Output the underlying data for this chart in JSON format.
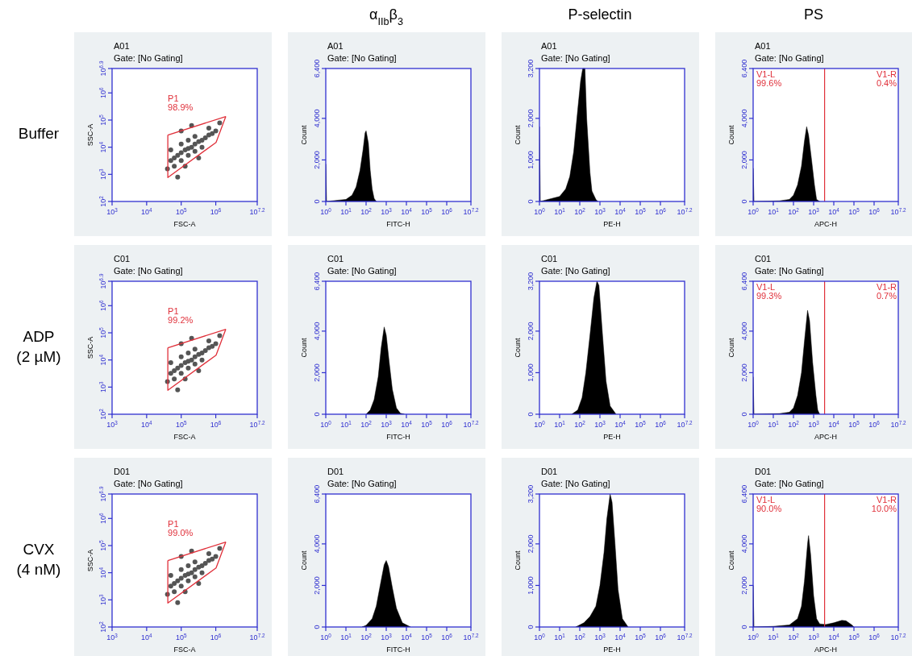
{
  "chart_data": [
    {
      "type": "other",
      "categories": [
        null,
        "α$_{IIb}$β$_{3}$",
        "P-selectin",
        "PS"
      ],
      "y_categories": [
        "Buffer",
        "ADP\n(2 µM)",
        "CVX\n(4 nM)"
      ]
    },
    {
      "type": "scatter",
      "title": "A01",
      "subtitle": "Gate: [No Gating]",
      "xlabel": "FSC-A",
      "ylabel": "SSC-A",
      "log": "xy",
      "xlim": [
        1000,
        15848932
      ],
      "ylim": [
        100,
        7943282
      ],
      "xticks": [
        {
          "value": 1000,
          "label": "10$^{3}$"
        },
        {
          "value": 10000,
          "label": "10$^{4}$"
        },
        {
          "value": 100000,
          "label": "10$^{5}$"
        },
        {
          "value": 1000000,
          "label": "10$^{6}$"
        },
        {
          "value": 15848932,
          "label": "10$^{7.2}$"
        }
      ],
      "yticks": [
        {
          "value": 100,
          "label": "10$^{2}$"
        },
        {
          "value": 1000,
          "label": "10$^{3}$"
        },
        {
          "value": 10000,
          "label": "10$^{4}$"
        },
        {
          "value": 100000,
          "label": "10$^{5}$"
        },
        {
          "value": 1000000,
          "label": "10$^{6}$"
        },
        {
          "value": 7943282,
          "label": "10$^{6.9}$"
        }
      ],
      "annotations": [
        "P1\n98.9%"
      ],
      "series": [
        {
          "type": "scatter",
          "color": "#555555",
          "x": [
            50000,
            63000,
            79000,
            100000,
            130000,
            160000,
            200000,
            250000,
            320000,
            400000,
            500000,
            630000,
            790000,
            1000000,
            100000,
            160000,
            250000,
            400000,
            100000,
            160000,
            250000,
            63000,
            50000,
            130000,
            630000,
            1300000,
            100000,
            200000,
            79000,
            320000,
            40000
          ],
          "values": [
            3200,
            4000,
            5000,
            6300,
            7900,
            8900,
            10000,
            13000,
            16000,
            18000,
            22000,
            28000,
            32000,
            40000,
            3200,
            5000,
            7100,
            10000,
            13000,
            18000,
            25000,
            2000,
            7900,
            2000,
            50000,
            79000,
            40000,
            63000,
            790,
            4000,
            1600
          ]
        },
        {
          "type": "line",
          "color": "#e0303a",
          "x": [
            41000,
            1950000
          ],
          "values": [
            28000,
            135000
          ]
        },
        {
          "type": "line",
          "color": "#e0303a",
          "x": [
            41000,
            41000,
            1020000,
            1950000
          ],
          "values": [
            28000,
            760,
            15000,
            135000
          ]
        }
      ]
    },
    {
      "type": "area",
      "title": "A01",
      "subtitle": "Gate: [No Gating]",
      "xlabel": "FITC-H",
      "ylabel": "Count",
      "log": "x",
      "xlim": [
        1,
        15848932
      ],
      "ylim": [
        0,
        6400
      ],
      "xticks": [
        {
          "value": 1,
          "label": "10$^{0}$"
        },
        {
          "value": 10,
          "label": "10$^{1}$"
        },
        {
          "value": 100,
          "label": "10$^{2}$"
        },
        {
          "value": 1000,
          "label": "10$^{3}$"
        },
        {
          "value": 10000,
          "label": "10$^{4}$"
        },
        {
          "value": 100000,
          "label": "10$^{5}$"
        },
        {
          "value": 1000000,
          "label": "10$^{6}$"
        },
        {
          "value": 15848932,
          "label": "10$^{7.2}$"
        }
      ],
      "yticks": [
        {
          "value": 0,
          "label": "0"
        },
        {
          "value": 2000,
          "label": "2,000"
        },
        {
          "value": 4000,
          "label": "4,000"
        },
        {
          "value": 6400,
          "label": "6,400"
        }
      ],
      "series": [
        {
          "color": "#000000",
          "x": [
            1,
            1.1,
            3.2,
            10,
            20,
            32,
            50,
            71,
            89,
            100,
            130,
            160,
            200,
            250,
            320
          ],
          "values": [
            1800,
            0,
            50,
            100,
            300,
            700,
            1500,
            2500,
            3300,
            3400,
            2800,
            1500,
            600,
            150,
            0
          ]
        }
      ]
    },
    {
      "type": "area",
      "title": "A01",
      "subtitle": "Gate: [No Gating]",
      "xlabel": "PE-H",
      "ylabel": "Count",
      "log": "x",
      "xlim": [
        1,
        15848932
      ],
      "ylim": [
        0,
        3200
      ],
      "xticks": [
        {
          "value": 1,
          "label": "10$^{0}$"
        },
        {
          "value": 10,
          "label": "10$^{1}$"
        },
        {
          "value": 100,
          "label": "10$^{2}$"
        },
        {
          "value": 1000,
          "label": "10$^{3}$"
        },
        {
          "value": 10000,
          "label": "10$^{4}$"
        },
        {
          "value": 100000,
          "label": "10$^{5}$"
        },
        {
          "value": 1000000,
          "label": "10$^{6}$"
        },
        {
          "value": 15848932,
          "label": "10$^{7.2}$"
        }
      ],
      "yticks": [
        {
          "value": 0,
          "label": "0"
        },
        {
          "value": 1000,
          "label": "1,000"
        },
        {
          "value": 2000,
          "label": "2,000"
        },
        {
          "value": 3200,
          "label": "3,200"
        }
      ],
      "series": [
        {
          "color": "#000000",
          "x": [
            1,
            1.1,
            3.2,
            10,
            20,
            32,
            50,
            79,
            110,
            140,
            180,
            220,
            320,
            400,
            630,
            790
          ],
          "values": [
            1800,
            0,
            60,
            120,
            300,
            600,
            1200,
            2200,
            2900,
            3200,
            3200,
            2000,
            700,
            250,
            50,
            0
          ]
        }
      ]
    },
    {
      "type": "area",
      "title": "A01",
      "subtitle": "Gate: [No Gating]",
      "xlabel": "APC-H",
      "ylabel": "Count",
      "log": "x",
      "xlim": [
        1,
        15848932
      ],
      "ylim": [
        0,
        6400
      ],
      "xticks": [
        {
          "value": 1,
          "label": "10$^{0}$"
        },
        {
          "value": 10,
          "label": "10$^{1}$"
        },
        {
          "value": 100,
          "label": "10$^{2}$"
        },
        {
          "value": 1000,
          "label": "10$^{3}$"
        },
        {
          "value": 10000,
          "label": "10$^{4}$"
        },
        {
          "value": 100000,
          "label": "10$^{5}$"
        },
        {
          "value": 1000000,
          "label": "10$^{6}$"
        },
        {
          "value": 15848932,
          "label": "10$^{7.2}$"
        }
      ],
      "yticks": [
        {
          "value": 0,
          "label": "0"
        },
        {
          "value": 2000,
          "label": "2,000"
        },
        {
          "value": 4000,
          "label": "4,000"
        },
        {
          "value": 6400,
          "label": "6,400"
        }
      ],
      "ref_lines": [
        {
          "axis": "x",
          "value": 3500,
          "color": "#e0303a"
        }
      ],
      "annotations": [
        "V1-L\n99.6%",
        "V1-R\n0.4%"
      ],
      "series": [
        {
          "color": "#000000",
          "x": [
            1,
            1.1,
            20,
            63,
            100,
            160,
            250,
            350,
            450,
            560,
            790,
            1100,
            1400,
            2000
          ],
          "values": [
            1600,
            0,
            30,
            100,
            300,
            800,
            1700,
            2900,
            3600,
            3200,
            2000,
            800,
            100,
            0
          ]
        }
      ]
    },
    {
      "type": "scatter",
      "title": "C01",
      "subtitle": "Gate: [No Gating]",
      "xlabel": "FSC-A",
      "ylabel": "SSC-A",
      "log": "xy",
      "xlim": [
        1000,
        15848932
      ],
      "ylim": [
        100,
        7943282
      ],
      "xticks": [
        {
          "value": 1000,
          "label": "10$^{3}$"
        },
        {
          "value": 10000,
          "label": "10$^{4}$"
        },
        {
          "value": 100000,
          "label": "10$^{5}$"
        },
        {
          "value": 1000000,
          "label": "10$^{6}$"
        },
        {
          "value": 15848932,
          "label": "10$^{7.2}$"
        }
      ],
      "yticks": [
        {
          "value": 100,
          "label": "10$^{2}$"
        },
        {
          "value": 1000,
          "label": "10$^{3}$"
        },
        {
          "value": 10000,
          "label": "10$^{4}$"
        },
        {
          "value": 100000,
          "label": "10$^{5}$"
        },
        {
          "value": 1000000,
          "label": "10$^{6}$"
        },
        {
          "value": 7943282,
          "label": "10$^{6.9}$"
        }
      ],
      "annotations": [
        "P1\n99.2%"
      ],
      "series": [
        {
          "type": "scatter",
          "color": "#555555",
          "x": [
            50000,
            63000,
            79000,
            100000,
            130000,
            160000,
            200000,
            250000,
            320000,
            400000,
            500000,
            630000,
            790000,
            1000000,
            100000,
            160000,
            250000,
            400000,
            100000,
            160000,
            250000,
            63000,
            50000,
            130000,
            630000,
            1300000,
            100000,
            200000,
            79000,
            320000,
            40000
          ],
          "values": [
            3200,
            4000,
            5000,
            6300,
            7900,
            8900,
            10000,
            13000,
            16000,
            18000,
            22000,
            28000,
            32000,
            40000,
            3200,
            5000,
            7100,
            10000,
            13000,
            18000,
            25000,
            2000,
            7900,
            2000,
            50000,
            79000,
            40000,
            63000,
            790,
            4000,
            1600
          ]
        },
        {
          "type": "line",
          "color": "#e0303a",
          "x": [
            41000,
            1950000
          ],
          "values": [
            28000,
            135000
          ]
        },
        {
          "type": "line",
          "color": "#e0303a",
          "x": [
            41000,
            41000,
            1020000,
            1950000
          ],
          "values": [
            28000,
            760,
            15000,
            135000
          ]
        }
      ]
    },
    {
      "type": "area",
      "title": "C01",
      "subtitle": "Gate: [No Gating]",
      "xlabel": "FITC-H",
      "ylabel": "Count",
      "log": "x",
      "xlim": [
        1,
        15848932
      ],
      "ylim": [
        0,
        6400
      ],
      "xticks": [
        {
          "value": 1,
          "label": "10$^{0}$"
        },
        {
          "value": 10,
          "label": "10$^{1}$"
        },
        {
          "value": 100,
          "label": "10$^{2}$"
        },
        {
          "value": 1000,
          "label": "10$^{3}$"
        },
        {
          "value": 10000,
          "label": "10$^{4}$"
        },
        {
          "value": 100000,
          "label": "10$^{5}$"
        },
        {
          "value": 1000000,
          "label": "10$^{6}$"
        },
        {
          "value": 15848932,
          "label": "10$^{7.2}$"
        }
      ],
      "yticks": [
        {
          "value": 0,
          "label": "0"
        },
        {
          "value": 2000,
          "label": "2,000"
        },
        {
          "value": 4000,
          "label": "4,000"
        },
        {
          "value": 6400,
          "label": "6,400"
        }
      ],
      "series": [
        {
          "color": "#000000",
          "x": [
            100,
            160,
            250,
            400,
            560,
            790,
            1000,
            1400,
            2000,
            3200,
            5000,
            7900
          ],
          "values": [
            0,
            200,
            700,
            1800,
            3200,
            4200,
            3800,
            2500,
            1200,
            300,
            50,
            0
          ]
        }
      ]
    },
    {
      "type": "area",
      "title": "C01",
      "subtitle": "Gate: [No Gating]",
      "xlabel": "PE-H",
      "ylabel": "Count",
      "log": "x",
      "xlim": [
        1,
        15848932
      ],
      "ylim": [
        0,
        3200
      ],
      "xticks": [
        {
          "value": 1,
          "label": "10$^{0}$"
        },
        {
          "value": 10,
          "label": "10$^{1}$"
        },
        {
          "value": 100,
          "label": "10$^{2}$"
        },
        {
          "value": 1000,
          "label": "10$^{3}$"
        },
        {
          "value": 10000,
          "label": "10$^{4}$"
        },
        {
          "value": 100000,
          "label": "10$^{5}$"
        },
        {
          "value": 1000000,
          "label": "10$^{6}$"
        },
        {
          "value": 15848932,
          "label": "10$^{7.2}$"
        }
      ],
      "yticks": [
        {
          "value": 0,
          "label": "0"
        },
        {
          "value": 1000,
          "label": "1,000"
        },
        {
          "value": 2000,
          "label": "2,000"
        },
        {
          "value": 3200,
          "label": "3,200"
        }
      ],
      "series": [
        {
          "color": "#000000",
          "x": [
            40,
            79,
            130,
            200,
            320,
            500,
            710,
            890,
            1300,
            2000,
            3200,
            6300
          ],
          "values": [
            0,
            100,
            400,
            1000,
            1900,
            2800,
            3200,
            3100,
            2000,
            800,
            200,
            0
          ]
        }
      ]
    },
    {
      "type": "area",
      "title": "C01",
      "subtitle": "Gate: [No Gating]",
      "xlabel": "APC-H",
      "ylabel": "Count",
      "log": "x",
      "xlim": [
        1,
        15848932
      ],
      "ylim": [
        0,
        6400
      ],
      "xticks": [
        {
          "value": 1,
          "label": "10$^{0}$"
        },
        {
          "value": 10,
          "label": "10$^{1}$"
        },
        {
          "value": 100,
          "label": "10$^{2}$"
        },
        {
          "value": 1000,
          "label": "10$^{3}$"
        },
        {
          "value": 10000,
          "label": "10$^{4}$"
        },
        {
          "value": 100000,
          "label": "10$^{5}$"
        },
        {
          "value": 1000000,
          "label": "10$^{6}$"
        },
        {
          "value": 15848932,
          "label": "10$^{7.2}$"
        }
      ],
      "yticks": [
        {
          "value": 0,
          "label": "0"
        },
        {
          "value": 2000,
          "label": "2,000"
        },
        {
          "value": 4000,
          "label": "4,000"
        },
        {
          "value": 6400,
          "label": "6,400"
        }
      ],
      "ref_lines": [
        {
          "axis": "x",
          "value": 3500,
          "color": "#e0303a"
        }
      ],
      "annotations": [
        "V1-L\n99.3%",
        "V1-R\n0.7%"
      ],
      "series": [
        {
          "color": "#000000",
          "x": [
            1,
            1.1,
            20,
            63,
            100,
            160,
            250,
            350,
            500,
            630,
            890,
            1300,
            1600,
            2000
          ],
          "values": [
            1800,
            0,
            30,
            100,
            300,
            900,
            2000,
            3500,
            5000,
            4500,
            2500,
            900,
            200,
            0
          ]
        }
      ]
    },
    {
      "type": "scatter",
      "title": "D01",
      "subtitle": "Gate: [No Gating]",
      "xlabel": "FSC-A",
      "ylabel": "SSC-A",
      "log": "xy",
      "xlim": [
        1000,
        15848932
      ],
      "ylim": [
        100,
        7943282
      ],
      "xticks": [
        {
          "value": 1000,
          "label": "10$^{3}$"
        },
        {
          "value": 10000,
          "label": "10$^{4}$"
        },
        {
          "value": 100000,
          "label": "10$^{5}$"
        },
        {
          "value": 1000000,
          "label": "10$^{6}$"
        },
        {
          "value": 15848932,
          "label": "10$^{7.2}$"
        }
      ],
      "yticks": [
        {
          "value": 100,
          "label": "10$^{2}$"
        },
        {
          "value": 1000,
          "label": "10$^{3}$"
        },
        {
          "value": 10000,
          "label": "10$^{4}$"
        },
        {
          "value": 100000,
          "label": "10$^{5}$"
        },
        {
          "value": 1000000,
          "label": "10$^{6}$"
        },
        {
          "value": 7943282,
          "label": "10$^{6.9}$"
        }
      ],
      "annotations": [
        "P1\n99.0%"
      ],
      "series": [
        {
          "type": "scatter",
          "color": "#555555",
          "x": [
            50000,
            63000,
            79000,
            100000,
            130000,
            160000,
            200000,
            250000,
            320000,
            400000,
            500000,
            630000,
            790000,
            1000000,
            100000,
            160000,
            250000,
            400000,
            100000,
            160000,
            250000,
            63000,
            50000,
            130000,
            630000,
            1300000,
            100000,
            200000,
            79000,
            320000,
            40000
          ],
          "values": [
            3200,
            4000,
            5000,
            6300,
            7900,
            8900,
            10000,
            13000,
            16000,
            18000,
            22000,
            28000,
            32000,
            40000,
            3200,
            5000,
            7100,
            10000,
            13000,
            18000,
            25000,
            2000,
            7900,
            2000,
            50000,
            79000,
            40000,
            63000,
            790,
            4000,
            1600
          ]
        },
        {
          "type": "line",
          "color": "#e0303a",
          "x": [
            41000,
            1950000
          ],
          "values": [
            28000,
            135000
          ]
        },
        {
          "type": "line",
          "color": "#e0303a",
          "x": [
            41000,
            41000,
            1020000,
            1950000
          ],
          "values": [
            28000,
            760,
            15000,
            135000
          ]
        }
      ]
    },
    {
      "type": "area",
      "title": "D01",
      "subtitle": "Gate: [No Gating]",
      "xlabel": "FITC-H",
      "ylabel": "Count",
      "log": "x",
      "xlim": [
        1,
        15848932
      ],
      "ylim": [
        0,
        6400
      ],
      "xticks": [
        {
          "value": 1,
          "label": "10$^{0}$"
        },
        {
          "value": 10,
          "label": "10$^{1}$"
        },
        {
          "value": 100,
          "label": "10$^{2}$"
        },
        {
          "value": 1000,
          "label": "10$^{3}$"
        },
        {
          "value": 10000,
          "label": "10$^{4}$"
        },
        {
          "value": 100000,
          "label": "10$^{5}$"
        },
        {
          "value": 1000000,
          "label": "10$^{6}$"
        },
        {
          "value": 15848932,
          "label": "10$^{7.2}$"
        }
      ],
      "yticks": [
        {
          "value": 0,
          "label": "0"
        },
        {
          "value": 2000,
          "label": "2,000"
        },
        {
          "value": 4000,
          "label": "4,000"
        },
        {
          "value": 6400,
          "label": "6,400"
        }
      ],
      "series": [
        {
          "color": "#000000",
          "x": [
            63,
            100,
            200,
            320,
            500,
            790,
            1000,
            1300,
            2000,
            3200,
            6300,
            16000
          ],
          "values": [
            0,
            80,
            400,
            1000,
            2000,
            3000,
            3200,
            2900,
            1900,
            900,
            200,
            0
          ]
        }
      ]
    },
    {
      "type": "area",
      "title": "D01",
      "subtitle": "Gate: [No Gating]",
      "xlabel": "PE-H",
      "ylabel": "Count",
      "log": "x",
      "xlim": [
        1,
        15848932
      ],
      "ylim": [
        0,
        3200
      ],
      "xticks": [
        {
          "value": 1,
          "label": "10$^{0}$"
        },
        {
          "value": 10,
          "label": "10$^{1}$"
        },
        {
          "value": 100,
          "label": "10$^{2}$"
        },
        {
          "value": 1000,
          "label": "10$^{3}$"
        },
        {
          "value": 10000,
          "label": "10$^{4}$"
        },
        {
          "value": 100000,
          "label": "10$^{5}$"
        },
        {
          "value": 1000000,
          "label": "10$^{6}$"
        },
        {
          "value": 15848932,
          "label": "10$^{7.2}$"
        }
      ],
      "yticks": [
        {
          "value": 0,
          "label": "0"
        },
        {
          "value": 1000,
          "label": "1,000"
        },
        {
          "value": 2000,
          "label": "2,000"
        },
        {
          "value": 3200,
          "label": "3,200"
        }
      ],
      "series": [
        {
          "color": "#000000",
          "x": [
            63,
            160,
            320,
            630,
            1000,
            1600,
            2200,
            3200,
            4000,
            5600,
            7900,
            13000,
            25000
          ],
          "values": [
            0,
            100,
            250,
            500,
            1000,
            1800,
            2600,
            3200,
            3000,
            2000,
            900,
            200,
            0
          ]
        }
      ]
    },
    {
      "type": "area",
      "title": "D01",
      "subtitle": "Gate: [No Gating]",
      "xlabel": "APC-H",
      "ylabel": "Count",
      "log": "x",
      "xlim": [
        1,
        15848932
      ],
      "ylim": [
        0,
        6400
      ],
      "xticks": [
        {
          "value": 1,
          "label": "10$^{0}$"
        },
        {
          "value": 10,
          "label": "10$^{1}$"
        },
        {
          "value": 100,
          "label": "10$^{2}$"
        },
        {
          "value": 1000,
          "label": "10$^{3}$"
        },
        {
          "value": 10000,
          "label": "10$^{4}$"
        },
        {
          "value": 100000,
          "label": "10$^{5}$"
        },
        {
          "value": 1000000,
          "label": "10$^{6}$"
        },
        {
          "value": 15848932,
          "label": "10$^{7.2}$"
        }
      ],
      "yticks": [
        {
          "value": 0,
          "label": "0"
        },
        {
          "value": 2000,
          "label": "2,000"
        },
        {
          "value": 4000,
          "label": "4,000"
        },
        {
          "value": 6400,
          "label": "6,400"
        }
      ],
      "ref_lines": [
        {
          "axis": "x",
          "value": 3500,
          "color": "#e0303a"
        }
      ],
      "annotations": [
        "V1-L\n90.0%",
        "V1-R\n10.0%"
      ],
      "series": [
        {
          "color": "#000000",
          "x": [
            1,
            1.1,
            10,
            63,
            160,
            250,
            350,
            500,
            560,
            710,
            1000,
            1400,
            2000,
            4000,
            10000,
            25000,
            40000,
            79000,
            100000
          ],
          "values": [
            2000,
            0,
            30,
            100,
            400,
            1000,
            2200,
            4000,
            4400,
            3500,
            1500,
            400,
            150,
            120,
            200,
            320,
            300,
            100,
            0
          ]
        }
      ]
    }
  ]
}
